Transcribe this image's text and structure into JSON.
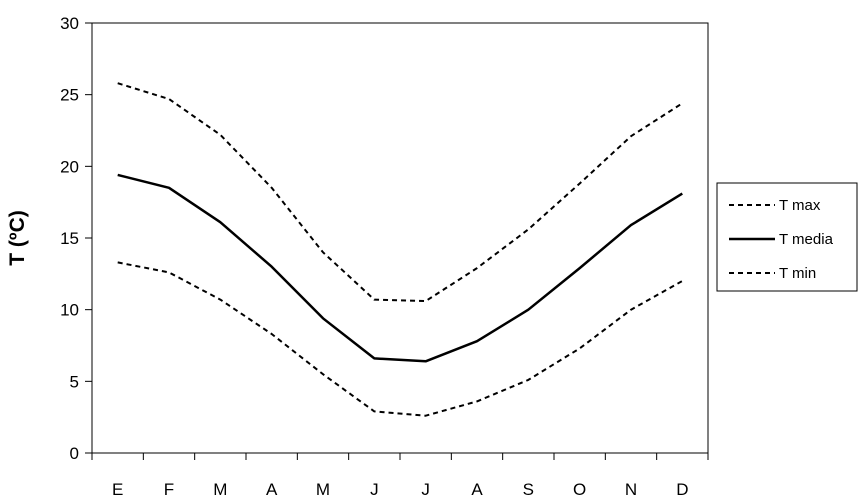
{
  "chart_data": {
    "type": "line",
    "title": "",
    "xlabel": "",
    "ylabel": "T (ºC)",
    "ylim": [
      0,
      30
    ],
    "yticks": [
      "0",
      "5",
      "10",
      "15",
      "20",
      "25",
      "30"
    ],
    "categories": [
      "E",
      "F",
      "M",
      "A",
      "M",
      "J",
      "J",
      "A",
      "S",
      "O",
      "N",
      "D"
    ],
    "grid": false,
    "legend_position": "right",
    "series": [
      {
        "name": "T max",
        "style": "dashed",
        "color": "#000000",
        "values": [
          25.8,
          24.7,
          22.2,
          18.5,
          14.0,
          10.7,
          10.6,
          12.9,
          15.6,
          18.8,
          22.1,
          24.4
        ]
      },
      {
        "name": "T media",
        "style": "solid",
        "color": "#000000",
        "values": [
          19.4,
          18.5,
          16.1,
          13.0,
          9.4,
          6.6,
          6.4,
          7.8,
          10.0,
          12.9,
          15.9,
          18.1
        ]
      },
      {
        "name": "T min",
        "style": "dashed",
        "color": "#000000",
        "values": [
          13.3,
          12.6,
          10.7,
          8.3,
          5.5,
          2.9,
          2.6,
          3.6,
          5.1,
          7.3,
          10.0,
          12.0
        ]
      }
    ]
  }
}
